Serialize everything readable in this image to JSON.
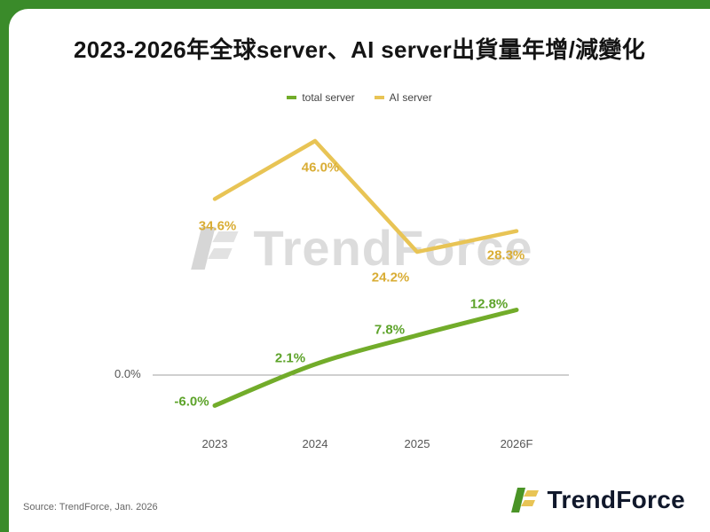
{
  "header": {
    "title": "2023-2026年全球server、AI server出貨量年增/減變化"
  },
  "chart_data": {
    "type": "line",
    "title": "2023-2026年全球server、AI server出貨量年增/減變化",
    "categories": [
      "2023",
      "2024",
      "2025",
      "2026F"
    ],
    "series": [
      {
        "name": "total server",
        "color": "#72ac2a",
        "label_color": "#5da32a",
        "values": [
          -6.0,
          2.1,
          7.8,
          12.8
        ],
        "labels": [
          "-6.0%",
          "2.1%",
          "7.8%",
          "12.8%"
        ]
      },
      {
        "name": "AI server",
        "color": "#e8c455",
        "label_color": "#d9ad35",
        "values": [
          34.6,
          46.0,
          24.2,
          28.3
        ],
        "labels": [
          "34.6%",
          "46.0%",
          "24.2%",
          "28.3%"
        ]
      }
    ],
    "baseline_label": "0.0%",
    "ylim": [
      -10,
      50
    ],
    "grid": "baseline only",
    "legend_position": "top"
  },
  "watermark": {
    "text": "TrendForce"
  },
  "footer": {
    "source": "Source: TrendForce, Jan. 2026",
    "logo_text": "TrendForce"
  },
  "colors": {
    "frame_green": "#3a8b2a",
    "total_server_green": "#72ac2a",
    "ai_server_yellow": "#e8c455"
  }
}
